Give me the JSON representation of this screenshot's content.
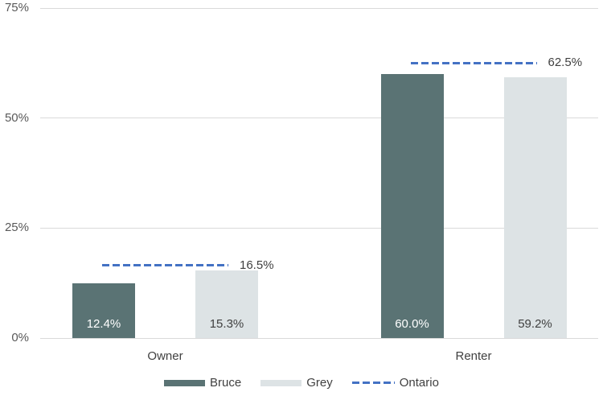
{
  "chart_data": {
    "type": "bar",
    "title": "",
    "categories": [
      "Owner",
      "Renter"
    ],
    "series": [
      {
        "name": "Bruce",
        "values": [
          12.4,
          60.0
        ],
        "data_labels": [
          "12.4%",
          "60.0%"
        ],
        "color": "#5a7374",
        "label_color": "#ffffff"
      },
      {
        "name": "Grey",
        "values": [
          15.3,
          59.2
        ],
        "data_labels": [
          "15.3%",
          "59.2%"
        ],
        "color": "#dde3e5",
        "label_color": "#404040"
      }
    ],
    "reference_series": {
      "name": "Ontario",
      "values": [
        16.5,
        62.5
      ],
      "labels": [
        "16.5%",
        "62.5%"
      ],
      "color": "#4472c4",
      "style": "dashed"
    },
    "y_axis": {
      "min": 0,
      "max": 75,
      "ticks": [
        {
          "label": "0%",
          "value": 0
        },
        {
          "label": "25%",
          "value": 25
        },
        {
          "label": "50%",
          "value": 50
        },
        {
          "label": "75%",
          "value": 75
        }
      ]
    },
    "grid": true,
    "legend_position": "bottom",
    "colors": {
      "gridline": "#dadada",
      "axis_text": "#595959",
      "category_text": "#404040",
      "annotation_text": "#3f3f3f",
      "background": "#ffffff"
    }
  }
}
